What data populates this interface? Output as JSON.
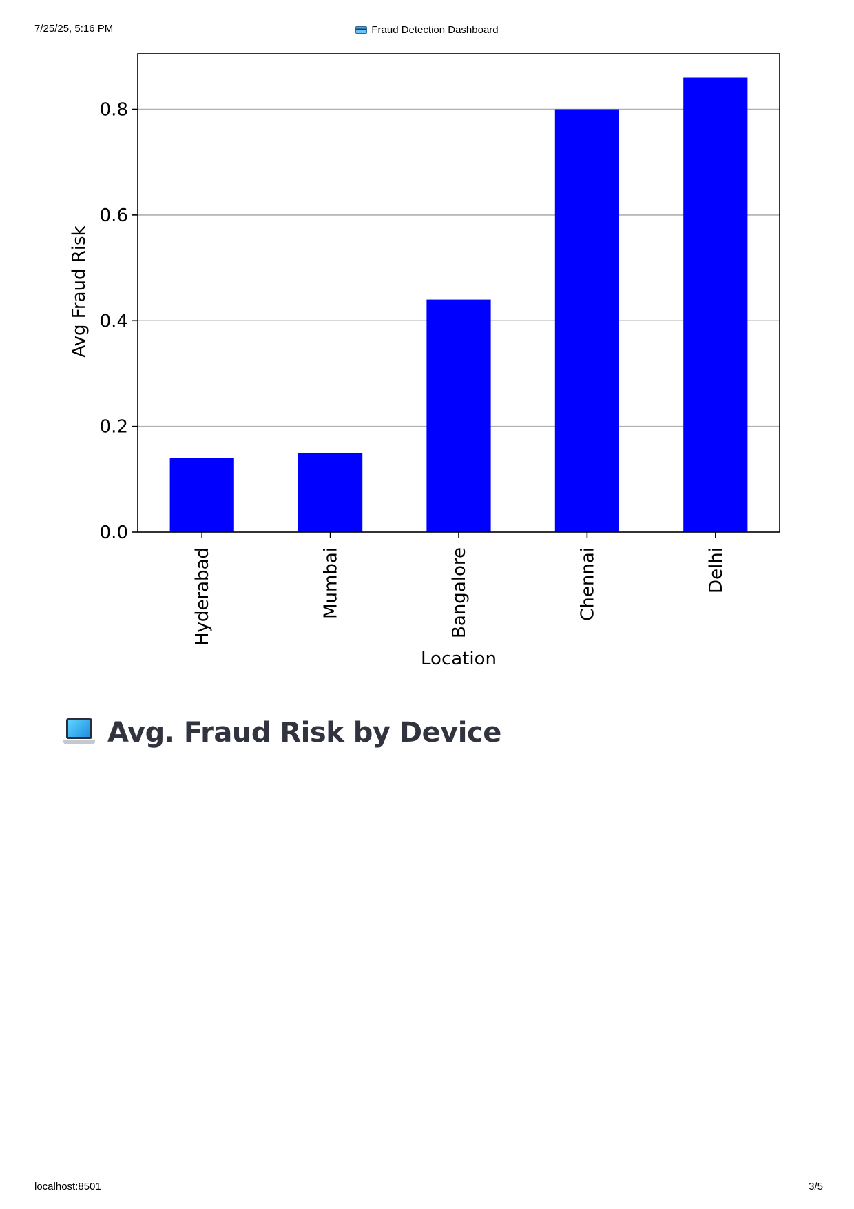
{
  "print_header": {
    "datetime": "7/25/25, 5:16 PM",
    "page_title": "Fraud Detection Dashboard",
    "page_title_icon": "credit-card-icon"
  },
  "print_footer": {
    "url": "localhost:8501",
    "page_number": "3/5"
  },
  "chart_data": {
    "type": "bar",
    "categories": [
      "Hyderabad",
      "Mumbai",
      "Bangalore",
      "Chennai",
      "Delhi"
    ],
    "values": [
      0.14,
      0.15,
      0.44,
      0.8,
      0.86
    ],
    "title": "",
    "xlabel": "Location",
    "ylabel": "Avg Fraud Risk",
    "ylim": [
      0,
      0.905
    ],
    "yticks": [
      "0.0",
      "0.2",
      "0.4",
      "0.6",
      "0.8"
    ],
    "ytick_values": [
      0,
      0.2,
      0.4,
      0.6,
      0.8
    ],
    "bar_color": "#0000ff",
    "grid": "horizontal",
    "legend": "none"
  },
  "section": {
    "heading": "Avg. Fraud Risk by Device",
    "icon": "laptop-icon"
  }
}
